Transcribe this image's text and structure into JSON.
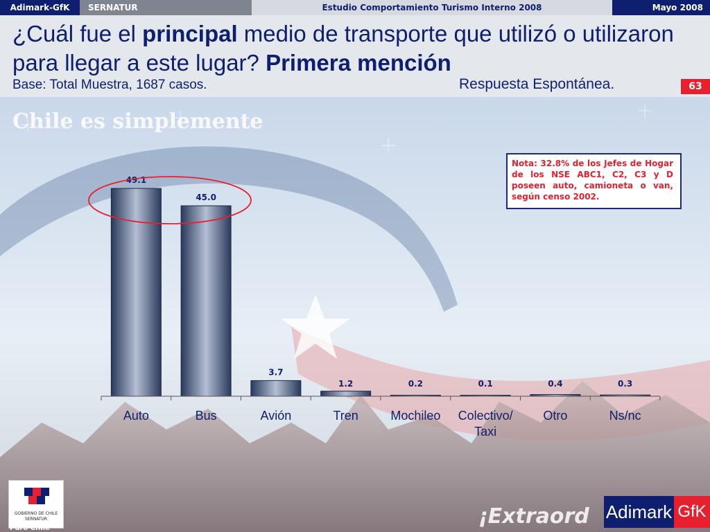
{
  "topbar": {
    "brand": "Adimark-GfK",
    "client": "SERNATUR",
    "study": "Estudio Comportamiento Turismo Interno 2008",
    "date": "Mayo 2008"
  },
  "header": {
    "title_part1": "¿Cuál fue el ",
    "title_bold1": "principal",
    "title_part2": " medio de transporte que utilizó o utilizaron para llegar a este lugar? ",
    "title_bold2": "Primera mención",
    "base": "Base: Total Muestra, 1687 casos.",
    "response_type": "Respuesta Espontánea.",
    "page_number": "63"
  },
  "note": "Nota: 32.8% de los Jefes de Hogar de los NSE ABC1, C2, C3 y D poseen auto, camioneta o van, según censo 2002.",
  "background": {
    "watermark": "Chile es simplemente",
    "tagline": "¡Extraord",
    "gob_text": "GOBIERNO DE CHILE",
    "gob_sub": "SERNATUR",
    "puro": "Puro Chile"
  },
  "logo": {
    "left": "Adimark",
    "right": "GfK"
  },
  "colors": {
    "navy": "#0d1f6e",
    "red": "#e6202e",
    "bar_dark": "#2a3a5c",
    "bar_light": "#aab4cc"
  },
  "chart_data": {
    "type": "bar",
    "categories": [
      "Auto",
      "Bus",
      "Avión",
      "Tren",
      "Mochileo",
      "Colectivo/ Taxi",
      "Otro",
      "Ns/nc"
    ],
    "values": [
      49.1,
      45.0,
      3.7,
      1.2,
      0.2,
      0.1,
      0.4,
      0.3
    ],
    "value_labels": [
      "49.1",
      "45.0",
      "3.7",
      "1.2",
      "0.2",
      "0.1",
      "0.4",
      "0.3"
    ],
    "title": "",
    "xlabel": "",
    "ylabel": "",
    "ylim": [
      0,
      50
    ],
    "grid": false,
    "highlighted": [
      "Auto",
      "Bus"
    ]
  }
}
